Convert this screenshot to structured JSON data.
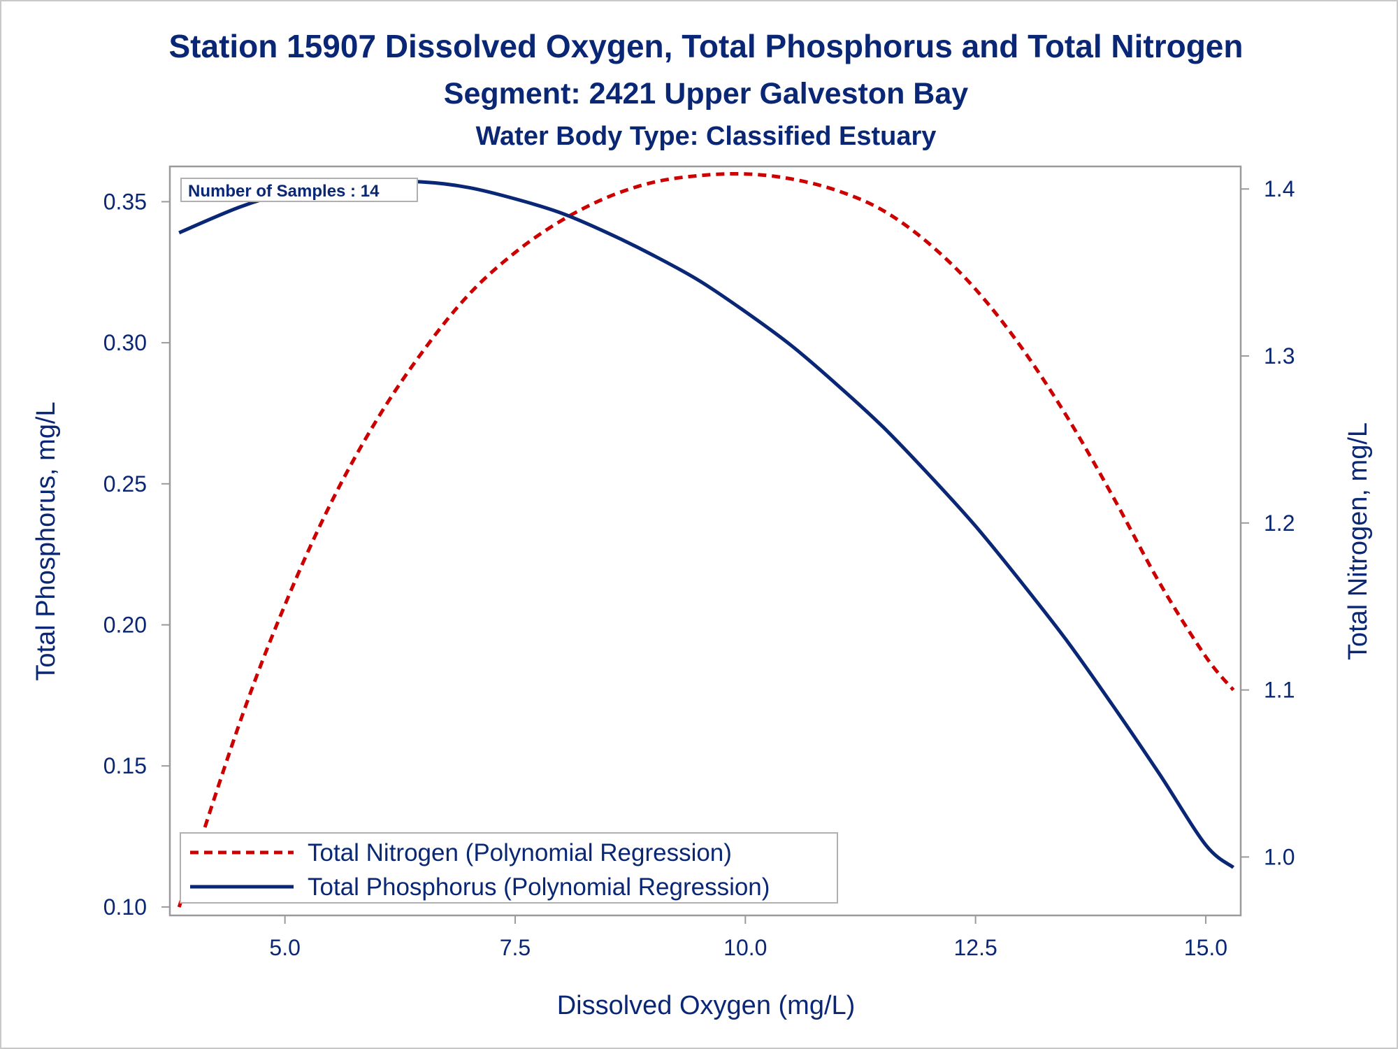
{
  "chart_data": {
    "type": "line",
    "title": "Station 15907  Dissolved Oxygen, Total Phosphorus and Total Nitrogen",
    "subtitle": "Segment: 2421  Upper Galveston Bay",
    "subtitle2": "Water Body Type: Classified Estuary",
    "xlabel": "Dissolved Oxygen (mg/L)",
    "ylabel": "Total Phosphorus, mg/L",
    "y2label": "Total Nitrogen, mg/L",
    "xlim": [
      3.75,
      15.38
    ],
    "ylim": [
      0.097,
      0.3625
    ],
    "y2lim": [
      0.965,
      1.4135
    ],
    "x_ticks": [
      "5.0",
      "7.5",
      "10.0",
      "12.5",
      "15.0"
    ],
    "y_ticks": [
      "0.10",
      "0.15",
      "0.20",
      "0.25",
      "0.30",
      "0.35"
    ],
    "y2_ticks": [
      "1.0",
      "1.1",
      "1.2",
      "1.3",
      "1.4"
    ],
    "grid": false,
    "annotation": "Number of Samples : 14",
    "legend_position": "bottom-left",
    "series": [
      {
        "name": "Total Nitrogen (Polynomial Regression)",
        "axis": "right",
        "style": "dashed",
        "color": "#cc0000",
        "x": [
          3.85,
          4.5,
          5.0,
          5.5,
          6.0,
          6.5,
          7.0,
          7.5,
          8.0,
          8.5,
          9.0,
          9.5,
          10.0,
          10.5,
          11.0,
          11.5,
          12.0,
          12.5,
          13.0,
          13.5,
          14.0,
          14.5,
          15.0,
          15.3
        ],
        "y": [
          0.97,
          1.079,
          1.151,
          1.212,
          1.262,
          1.303,
          1.337,
          1.362,
          1.381,
          1.395,
          1.404,
          1.408,
          1.409,
          1.406,
          1.399,
          1.387,
          1.367,
          1.34,
          1.305,
          1.263,
          1.215,
          1.164,
          1.12,
          1.1
        ]
      },
      {
        "name": "Total Phosphorus (Polynomial Regression)",
        "axis": "left",
        "style": "solid",
        "color": "#0a2775",
        "x": [
          3.85,
          4.5,
          5.0,
          5.5,
          6.0,
          6.5,
          7.0,
          7.5,
          8.0,
          8.5,
          9.0,
          9.5,
          10.0,
          10.5,
          11.0,
          11.5,
          12.0,
          12.5,
          13.0,
          13.5,
          14.0,
          14.5,
          15.0,
          15.3
        ],
        "y": [
          0.339,
          0.348,
          0.353,
          0.356,
          0.357,
          0.357,
          0.355,
          0.351,
          0.346,
          0.339,
          0.331,
          0.322,
          0.311,
          0.299,
          0.285,
          0.27,
          0.253,
          0.235,
          0.215,
          0.194,
          0.171,
          0.147,
          0.122,
          0.114
        ]
      }
    ]
  }
}
